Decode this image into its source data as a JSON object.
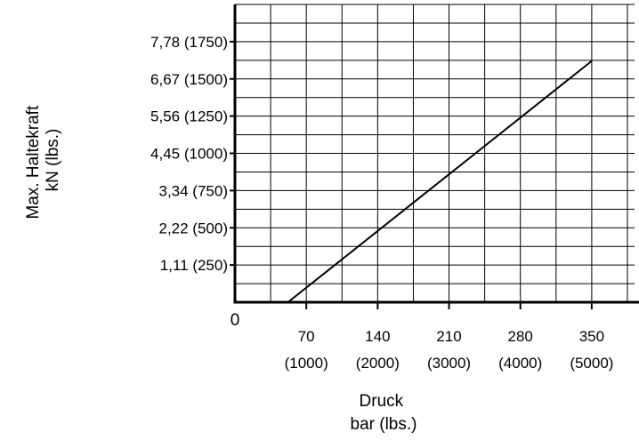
{
  "chart_data": {
    "type": "line",
    "title": "",
    "xlabel": [
      "Druck",
      "bar (lbs.)"
    ],
    "ylabel": [
      "Max. Haltekraft",
      "kN (lbs.)"
    ],
    "origin_label": "0",
    "xlim": [
      0,
      392
    ],
    "ylim": [
      0,
      2000
    ],
    "grid": true,
    "x_ticks": [
      {
        "value": 70,
        "label": "70",
        "sublabel": "(1000)"
      },
      {
        "value": 140,
        "label": "140",
        "sublabel": "(2000)"
      },
      {
        "value": 210,
        "label": "210",
        "sublabel": "(3000)"
      },
      {
        "value": 280,
        "label": "280",
        "sublabel": "(4000)"
      },
      {
        "value": 350,
        "label": "350",
        "sublabel": "(5000)"
      }
    ],
    "y_ticks": [
      {
        "value": 250,
        "label": "1,11 (250)"
      },
      {
        "value": 500,
        "label": "2,22 (500)"
      },
      {
        "value": 750,
        "label": "3,34 (750)"
      },
      {
        "value": 1000,
        "label": "4,45 (1000)"
      },
      {
        "value": 1250,
        "label": "5,56 (1250)"
      },
      {
        "value": 1500,
        "label": "6,67 (1500)"
      },
      {
        "value": 1750,
        "label": "7,78 (1750)"
      }
    ],
    "series": [
      {
        "x": [
          52,
          350
        ],
        "y": [
          0,
          1620
        ]
      }
    ]
  }
}
